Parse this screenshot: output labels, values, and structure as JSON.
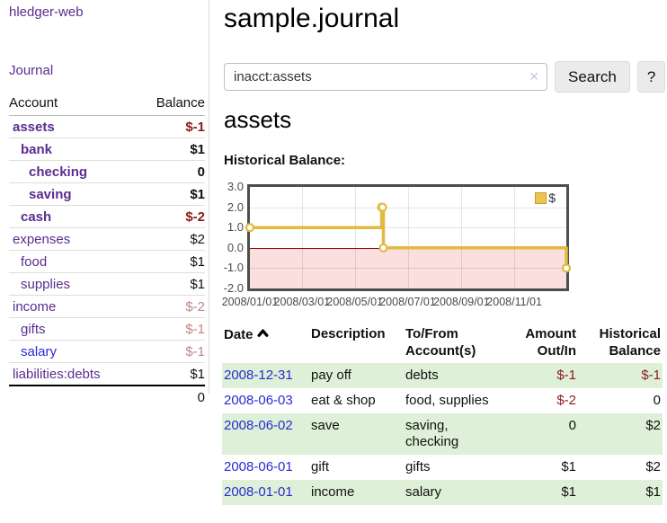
{
  "sidebar": {
    "app_title": "hledger-web",
    "nav_journal": "Journal",
    "accounts": {
      "headers": {
        "account": "Account",
        "balance": "Balance"
      },
      "rows": [
        {
          "name": "assets",
          "depth": 0,
          "bold": true,
          "balance": "$-1",
          "negative": "strong"
        },
        {
          "name": "bank",
          "depth": 1,
          "bold": true,
          "balance": "$1",
          "negative": "none"
        },
        {
          "name": "checking",
          "depth": 2,
          "bold": true,
          "balance": "0",
          "negative": "none"
        },
        {
          "name": "saving",
          "depth": 2,
          "bold": true,
          "balance": "$1",
          "negative": "none"
        },
        {
          "name": "cash",
          "depth": 1,
          "bold": true,
          "balance": "$-2",
          "negative": "strong"
        },
        {
          "name": "expenses",
          "depth": 0,
          "bold": false,
          "balance": "$2",
          "negative": "none"
        },
        {
          "name": "food",
          "depth": 1,
          "bold": false,
          "balance": "$1",
          "negative": "none"
        },
        {
          "name": "supplies",
          "depth": 1,
          "bold": false,
          "balance": "$1",
          "negative": "none"
        },
        {
          "name": "income",
          "depth": 0,
          "bold": false,
          "balance": "$-2",
          "negative": "soft"
        },
        {
          "name": "gifts",
          "depth": 1,
          "bold": false,
          "balance": "$-1",
          "negative": "soft"
        },
        {
          "name": "salary",
          "depth": 1,
          "bold": false,
          "balance": "$-1",
          "negative": "soft",
          "link_style": "blue"
        },
        {
          "name": "liabilities:debts",
          "depth": 0,
          "bold": false,
          "balance": "$1",
          "negative": "none"
        }
      ],
      "total": "0"
    }
  },
  "header": {
    "title": "sample.journal"
  },
  "search": {
    "value": "inacct:assets",
    "clear_icon": "✕",
    "button_label": "Search",
    "help_label": "?"
  },
  "account_page": {
    "title": "assets",
    "chart_label": "Historical Balance:"
  },
  "chart_data": {
    "type": "line",
    "step": true,
    "title": "Historical Balance:",
    "legend": [
      {
        "label": "$",
        "color": "#eac550"
      }
    ],
    "x_range": [
      "2008-01-01",
      "2008-12-31"
    ],
    "ylim": [
      -2,
      3
    ],
    "y_ticks": [
      "3.0",
      "2.0",
      "1.0",
      "0.0",
      "-1.0",
      "-2.0"
    ],
    "x_ticks": [
      {
        "label": "2008/01/01",
        "date": "2008-01-01"
      },
      {
        "label": "2008/03/01",
        "date": "2008-03-01"
      },
      {
        "label": "2008/05/01",
        "date": "2008-05-01"
      },
      {
        "label": "2008/07/01",
        "date": "2008-07-01"
      },
      {
        "label": "2008/09/01",
        "date": "2008-09-01"
      },
      {
        "label": "2008/11/01",
        "date": "2008-11-01"
      }
    ],
    "series": [
      {
        "name": "$",
        "points": [
          {
            "date": "2008-01-01",
            "value": 1
          },
          {
            "date": "2008-06-01",
            "value": 2
          },
          {
            "date": "2008-06-02",
            "value": 2
          },
          {
            "date": "2008-06-03",
            "value": 0
          },
          {
            "date": "2008-12-31",
            "value": -1
          }
        ]
      }
    ],
    "colors": {
      "line": "#e3b93f",
      "marker_fill": "#ffffff",
      "negative_region": "#fbdede",
      "zero_line": "#8c0d0d",
      "border": "#4d4d4d"
    }
  },
  "register": {
    "columns": {
      "date": "Date",
      "description": "Description",
      "accounts": "To/From Account(s)",
      "amount": "Amount Out/In",
      "balance": "Historical Balance"
    },
    "rows": [
      {
        "date": "2008-12-31",
        "description": "pay off",
        "accounts": "debts",
        "amount": "$-1",
        "amount_negative": true,
        "balance": "$-1",
        "balance_negative": true
      },
      {
        "date": "2008-06-03",
        "description": "eat & shop",
        "accounts": "food, supplies",
        "amount": "$-2",
        "amount_negative": true,
        "balance": "0",
        "balance_negative": false
      },
      {
        "date": "2008-06-02",
        "description": "save",
        "accounts": "saving, checking",
        "amount": "0",
        "amount_negative": false,
        "balance": "$2",
        "balance_negative": false
      },
      {
        "date": "2008-06-01",
        "description": "gift",
        "accounts": "gifts",
        "amount": "$1",
        "amount_negative": false,
        "balance": "$2",
        "balance_negative": false
      },
      {
        "date": "2008-01-01",
        "description": "income",
        "accounts": "salary",
        "amount": "$1",
        "amount_negative": false,
        "balance": "$1",
        "balance_negative": false
      }
    ]
  },
  "colors": {
    "link_purple": "#5b2d90",
    "link_blue": "#2a2bd1",
    "negative_strong": "#8f1a1a",
    "negative_soft": "#c28686",
    "row_stripe_green": "#dff0d8"
  }
}
